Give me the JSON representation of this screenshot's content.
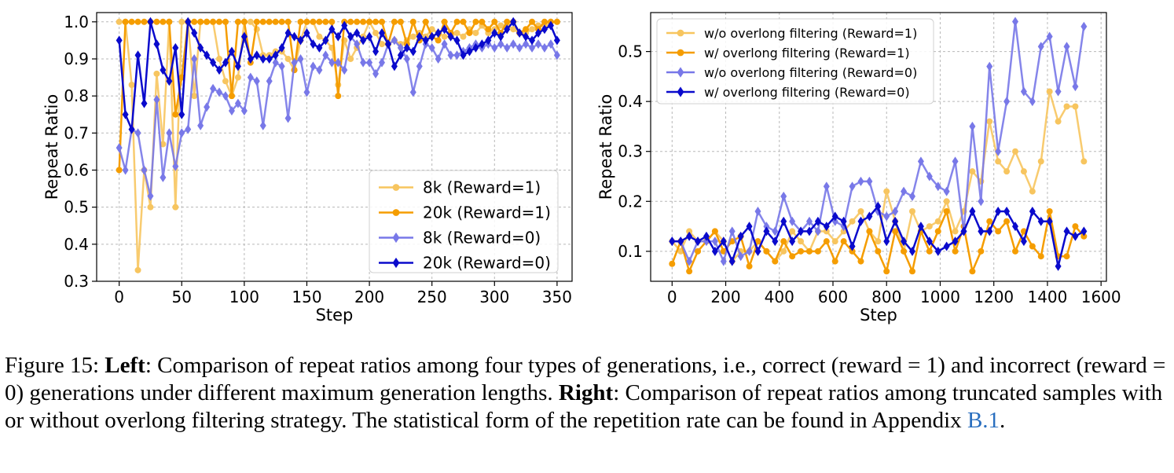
{
  "chart_data": [
    {
      "type": "line",
      "panel": "left",
      "xlabel": "Step",
      "ylabel": "Repeat Ratio",
      "xlim": [
        -18,
        362
      ],
      "ylim": [
        0.3,
        1.025
      ],
      "xticks": [
        0,
        50,
        100,
        150,
        200,
        250,
        300,
        350
      ],
      "yticks": [
        0.3,
        0.4,
        0.5,
        0.6,
        0.7,
        0.8,
        0.9,
        1.0
      ],
      "ytick_labels": [
        "0.3",
        "0.4",
        "0.5",
        "0.6",
        "0.7",
        "0.8",
        "0.9",
        "1.0"
      ],
      "grid": true,
      "legend_position": "lower-right",
      "x": [
        0,
        5,
        10,
        15,
        20,
        25,
        30,
        35,
        40,
        45,
        50,
        55,
        60,
        65,
        70,
        75,
        80,
        85,
        90,
        95,
        100,
        105,
        110,
        115,
        120,
        125,
        130,
        135,
        140,
        145,
        150,
        155,
        160,
        165,
        170,
        175,
        180,
        185,
        190,
        195,
        200,
        205,
        210,
        215,
        220,
        225,
        230,
        235,
        240,
        245,
        250,
        255,
        260,
        265,
        270,
        275,
        280,
        285,
        290,
        295,
        300,
        305,
        310,
        315,
        320,
        325,
        330,
        335,
        340,
        345,
        350
      ],
      "series": [
        {
          "name": "8k  (Reward=1)",
          "color": "#f7c55f",
          "marker": "circle",
          "values": [
            1.0,
            1.0,
            0.83,
            0.33,
            0.6,
            0.5,
            0.86,
            0.67,
            1.0,
            0.5,
            1.0,
            1.0,
            0.8,
            1.0,
            1.0,
            1.0,
            0.9,
            0.84,
            0.8,
            0.85,
            1.0,
            1.0,
            0.98,
            0.91,
            0.91,
            0.92,
            0.92,
            0.9,
            0.87,
            0.95,
            1.0,
            1.0,
            0.96,
            0.95,
            0.93,
            0.83,
            0.95,
            0.9,
            0.93,
            0.96,
            1.0,
            0.97,
            0.94,
            0.94,
            0.95,
            0.94,
            0.95,
            0.96,
            0.97,
            0.96,
            0.98,
            0.97,
            0.96,
            0.96,
            0.97,
            0.96,
            0.98,
            0.97,
            0.99,
            0.97,
            0.98,
            0.99,
            0.99,
            0.98,
            0.97,
            0.97,
            0.98,
            0.99,
            0.99,
            1.0,
            1.0
          ]
        },
        {
          "name": "20k (Reward=1)",
          "color": "#f59d00",
          "marker": "circle",
          "values": [
            0.6,
            1.0,
            1.0,
            1.0,
            1.0,
            1.0,
            1.0,
            1.0,
            1.0,
            0.75,
            0.85,
            1.0,
            1.0,
            1.0,
            1.0,
            1.0,
            1.0,
            1.0,
            0.8,
            1.0,
            1.0,
            0.89,
            1.0,
            1.0,
            1.0,
            1.0,
            1.0,
            1.0,
            0.87,
            1.0,
            1.0,
            1.0,
            1.0,
            1.0,
            1.0,
            0.8,
            1.0,
            1.0,
            1.0,
            1.0,
            1.0,
            1.0,
            1.0,
            0.94,
            1.0,
            1.0,
            0.94,
            1.0,
            0.95,
            1.0,
            0.96,
            0.95,
            1.0,
            0.97,
            1.0,
            1.0,
            0.97,
            1.0,
            1.0,
            0.98,
            1.0,
            0.97,
            1.0,
            1.0,
            0.97,
            0.98,
            1.0,
            0.98,
            1.0,
            1.0,
            1.0
          ]
        },
        {
          "name": "8k  (Reward=0)",
          "color": "#7878e8",
          "marker": "diamond",
          "values": [
            0.66,
            0.6,
            0.71,
            0.7,
            0.6,
            0.53,
            0.79,
            0.58,
            0.7,
            0.61,
            0.7,
            0.71,
            0.9,
            0.72,
            0.77,
            0.82,
            0.81,
            0.8,
            0.76,
            0.78,
            0.76,
            0.85,
            0.84,
            0.72,
            0.84,
            0.89,
            0.88,
            0.74,
            0.89,
            0.9,
            0.81,
            0.88,
            0.87,
            0.91,
            0.89,
            0.89,
            0.87,
            0.96,
            0.94,
            0.89,
            0.89,
            0.86,
            0.89,
            0.94,
            0.95,
            0.93,
            0.9,
            0.81,
            0.88,
            0.94,
            0.93,
            0.9,
            0.94,
            0.91,
            0.91,
            0.92,
            0.93,
            0.94,
            0.93,
            0.94,
            0.93,
            0.94,
            0.93,
            0.94,
            0.93,
            0.94,
            0.93,
            0.94,
            0.93,
            0.94,
            0.91
          ]
        },
        {
          "name": "20k (Reward=0)",
          "color": "#0a0acc",
          "marker": "diamond",
          "values": [
            0.95,
            0.75,
            0.71,
            0.91,
            0.78,
            1.0,
            0.94,
            0.87,
            0.84,
            0.93,
            0.75,
            1.0,
            0.97,
            0.93,
            0.91,
            0.89,
            0.87,
            0.89,
            0.92,
            0.88,
            0.96,
            0.9,
            0.91,
            0.9,
            0.9,
            0.91,
            0.93,
            0.97,
            0.96,
            0.95,
            0.97,
            0.94,
            0.93,
            0.95,
            0.98,
            0.96,
            0.99,
            0.96,
            0.97,
            0.95,
            0.96,
            0.92,
            0.97,
            0.94,
            0.88,
            0.91,
            0.93,
            0.92,
            0.96,
            0.95,
            0.96,
            0.97,
            0.98,
            0.96,
            0.95,
            0.91,
            0.92,
            0.93,
            0.94,
            0.95,
            0.97,
            0.96,
            0.98,
            1.0,
            0.97,
            0.96,
            0.95,
            0.97,
            0.98,
            0.99,
            0.95
          ]
        }
      ]
    },
    {
      "type": "line",
      "panel": "right",
      "xlabel": "Step",
      "ylabel": "Repeat Ratio",
      "xlim": [
        -80,
        1620
      ],
      "ylim": [
        0.04,
        0.578
      ],
      "xticks": [
        0,
        200,
        400,
        600,
        800,
        1000,
        1200,
        1400,
        1600
      ],
      "yticks": [
        0.1,
        0.2,
        0.3,
        0.4,
        0.5
      ],
      "ytick_labels": [
        "0.1",
        "0.2",
        "0.3",
        "0.4",
        "0.5"
      ],
      "grid": true,
      "legend_position": "upper-left",
      "x": [
        0,
        32,
        64,
        96,
        128,
        160,
        192,
        224,
        256,
        288,
        320,
        352,
        384,
        416,
        448,
        480,
        512,
        544,
        576,
        608,
        640,
        672,
        704,
        736,
        768,
        800,
        832,
        864,
        896,
        928,
        960,
        992,
        1024,
        1056,
        1088,
        1120,
        1152,
        1184,
        1216,
        1248,
        1280,
        1312,
        1344,
        1376,
        1408,
        1440,
        1472,
        1504,
        1536
      ],
      "series": [
        {
          "name": "w/o overlong filtering (Reward=1)",
          "color": "#f7c55f",
          "marker": "circle",
          "values": [
            0.12,
            0.1,
            0.14,
            0.12,
            0.12,
            0.14,
            0.12,
            0.08,
            0.1,
            0.1,
            0.12,
            0.1,
            0.08,
            0.1,
            0.14,
            0.12,
            0.1,
            0.14,
            0.14,
            0.12,
            0.14,
            0.16,
            0.18,
            0.14,
            0.12,
            0.22,
            0.16,
            0.1,
            0.18,
            0.14,
            0.15,
            0.16,
            0.2,
            0.14,
            0.18,
            0.26,
            0.24,
            0.36,
            0.28,
            0.26,
            0.3,
            0.26,
            0.22,
            0.28,
            0.42,
            0.36,
            0.39,
            0.39,
            0.28
          ]
        },
        {
          "name": "w/ overlong filtering (Reward=1)",
          "color": "#f59d00",
          "marker": "circle",
          "values": [
            0.075,
            0.12,
            0.06,
            0.1,
            0.12,
            0.14,
            0.1,
            0.12,
            0.13,
            0.07,
            0.12,
            0.1,
            0.08,
            0.12,
            0.09,
            0.1,
            0.1,
            0.1,
            0.12,
            0.08,
            0.12,
            0.1,
            0.08,
            0.14,
            0.1,
            0.06,
            0.14,
            0.1,
            0.06,
            0.14,
            0.1,
            0.14,
            0.18,
            0.1,
            0.15,
            0.06,
            0.1,
            0.16,
            0.14,
            0.16,
            0.1,
            0.14,
            0.11,
            0.09,
            0.18,
            0.09,
            0.09,
            0.15,
            0.13
          ]
        },
        {
          "name": "w/o overlong filtering (Reward=0)",
          "color": "#7878e8",
          "marker": "diamond",
          "values": [
            0.12,
            0.12,
            0.08,
            0.12,
            0.12,
            0.12,
            0.08,
            0.14,
            0.09,
            0.1,
            0.18,
            0.15,
            0.14,
            0.21,
            0.16,
            0.14,
            0.16,
            0.14,
            0.23,
            0.16,
            0.15,
            0.23,
            0.24,
            0.24,
            0.18,
            0.17,
            0.18,
            0.22,
            0.21,
            0.28,
            0.25,
            0.23,
            0.22,
            0.28,
            0.14,
            0.35,
            0.2,
            0.47,
            0.3,
            0.4,
            0.56,
            0.42,
            0.4,
            0.51,
            0.53,
            0.42,
            0.51,
            0.43,
            0.55
          ]
        },
        {
          "name": "w/ overlong filtering (Reward=0)",
          "color": "#0a0acc",
          "marker": "diamond",
          "values": [
            0.12,
            0.12,
            0.13,
            0.12,
            0.13,
            0.1,
            0.12,
            0.08,
            0.13,
            0.15,
            0.1,
            0.14,
            0.12,
            0.16,
            0.12,
            0.14,
            0.14,
            0.16,
            0.15,
            0.17,
            0.16,
            0.11,
            0.16,
            0.17,
            0.19,
            0.12,
            0.16,
            0.12,
            0.1,
            0.15,
            0.12,
            0.1,
            0.11,
            0.12,
            0.14,
            0.18,
            0.14,
            0.14,
            0.18,
            0.18,
            0.15,
            0.12,
            0.18,
            0.16,
            0.16,
            0.07,
            0.14,
            0.13,
            0.14
          ]
        }
      ]
    }
  ],
  "caption": {
    "figure_label": "Figure 15: ",
    "left_bold": "Left",
    "left_text": ": Comparison of repeat ratios among four types of generations, i.e., correct (reward = 1) and incorrect (reward = 0) generations under different maximum generation lengths. ",
    "right_bold": "Right",
    "right_text": ": Comparison of repeat ratios among truncated samples with or without overlong filtering strategy. The statistical form of the repetition rate can be found in Appendix ",
    "appendix_ref": "B.1",
    "end": "."
  }
}
